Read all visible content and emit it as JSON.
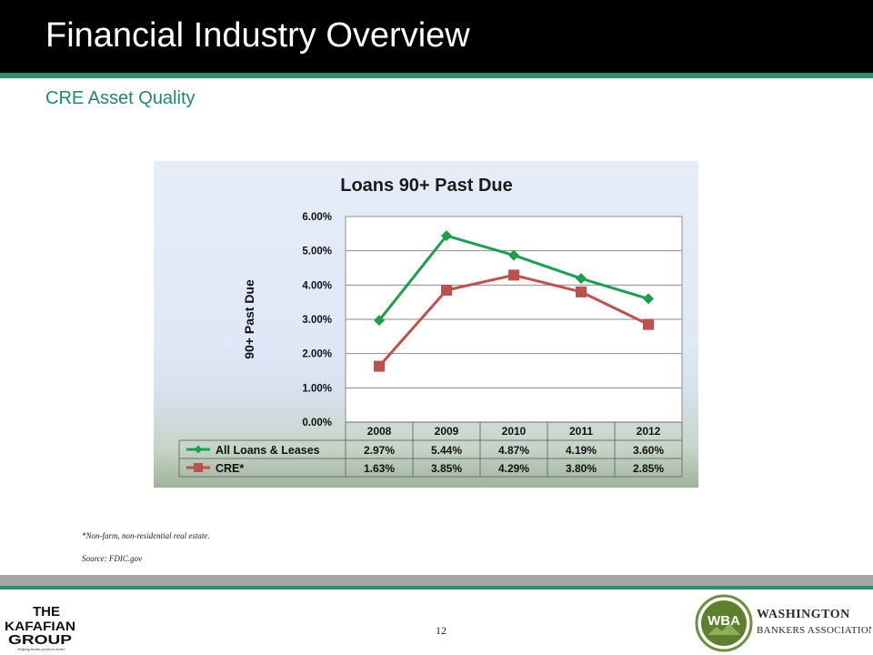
{
  "header": {
    "title": "Financial Industry Overview"
  },
  "subtitle": "CRE Asset Quality",
  "colors": {
    "header_bg": "#000000",
    "accent_green": "#2f8f6b",
    "series_all_loans": "#1aa050",
    "series_cre": "#c0504d"
  },
  "chart_data": {
    "type": "line",
    "title": "Loans 90+ Past Due",
    "ylabel": "90+ Past Due",
    "xlabel": "",
    "categories": [
      "2008",
      "2009",
      "2010",
      "2011",
      "2012"
    ],
    "ylim": [
      0,
      6
    ],
    "yticks": [
      "0.00%",
      "1.00%",
      "2.00%",
      "3.00%",
      "4.00%",
      "5.00%",
      "6.00%"
    ],
    "grid": true,
    "legend": "data-table",
    "series": [
      {
        "name": "All Loans & Leases",
        "color": "#1aa050",
        "marker": "diamond",
        "values": [
          2.97,
          5.44,
          4.87,
          4.19,
          3.6
        ],
        "labels": [
          "2.97%",
          "5.44%",
          "4.87%",
          "4.19%",
          "3.60%"
        ]
      },
      {
        "name": "CRE*",
        "color": "#c0504d",
        "marker": "square",
        "values": [
          1.63,
          3.85,
          4.29,
          3.8,
          2.85
        ],
        "labels": [
          "1.63%",
          "3.85%",
          "4.29%",
          "3.80%",
          "2.85%"
        ]
      }
    ]
  },
  "footnotes": [
    "*Non-farm, non-residential real estate.",
    "Source: FDIC.gov"
  ],
  "footer": {
    "page_number": "12",
    "left_logo": {
      "line1": "THE",
      "line2": "KAFAFIAN",
      "line3": "GROUP",
      "tagline": "...helping banks perform better"
    },
    "right_logo": {
      "monogram": "WBA",
      "line1": "WASHINGTON",
      "line2": "BANKERS ASSOCIATION"
    }
  }
}
